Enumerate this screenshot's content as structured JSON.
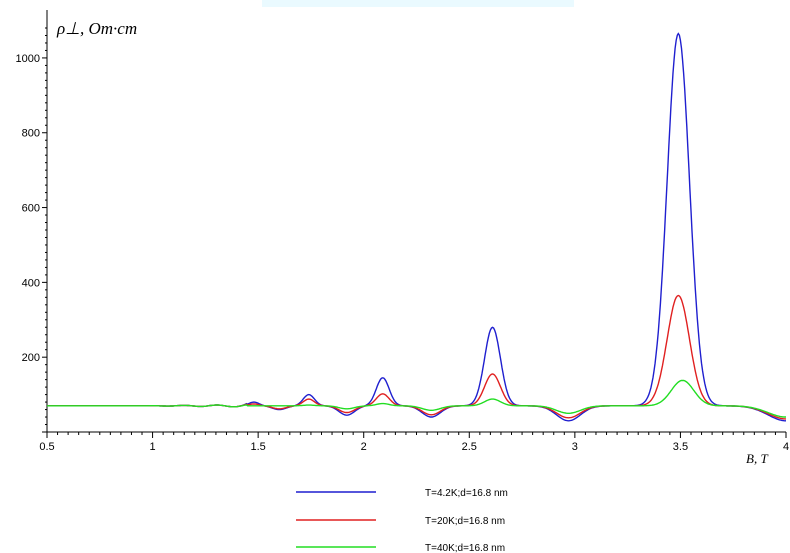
{
  "chart_data": {
    "type": "line",
    "ylabel": "ρ⊥, Om·cm",
    "xlabel": "B, T",
    "xlim": [
      0.5,
      4
    ],
    "ylim": [
      0,
      1080
    ],
    "x_ticks": [
      0.5,
      1,
      1.5,
      2,
      2.5,
      3,
      3.5,
      4
    ],
    "x_tick_labels": [
      "0.5",
      "1",
      "1.5",
      "2",
      "2.5",
      "3",
      "3.5",
      "4"
    ],
    "y_ticks": [
      200,
      400,
      600,
      800,
      1000
    ],
    "y_tick_labels": [
      "200",
      "400",
      "600",
      "800",
      "1000"
    ],
    "grid": false,
    "legend_position": "bottom-center",
    "series": [
      {
        "name": "T=4.2K;d=16.8 nm",
        "color": "#1f1fcf",
        "baseline": 70,
        "peaks": [
          {
            "x": 1.48,
            "height": 80
          },
          {
            "x": 1.74,
            "height": 100
          },
          {
            "x": 2.09,
            "height": 145
          },
          {
            "x": 2.61,
            "height": 280
          },
          {
            "x": 3.49,
            "height": 1065
          }
        ],
        "valleys": [
          {
            "x": 1.6,
            "depth": 60
          },
          {
            "x": 1.92,
            "depth": 45
          },
          {
            "x": 2.32,
            "depth": 40
          },
          {
            "x": 2.97,
            "depth": 30
          },
          {
            "x": 4.0,
            "depth": 30
          }
        ]
      },
      {
        "name": "T=20K;d=16.8 nm",
        "color": "#e02020",
        "baseline": 70,
        "peaks": [
          {
            "x": 1.48,
            "height": 75
          },
          {
            "x": 1.74,
            "height": 88
          },
          {
            "x": 2.09,
            "height": 102
          },
          {
            "x": 2.61,
            "height": 155
          },
          {
            "x": 3.49,
            "height": 365
          }
        ],
        "valleys": [
          {
            "x": 1.6,
            "depth": 62
          },
          {
            "x": 1.92,
            "depth": 52
          },
          {
            "x": 2.32,
            "depth": 46
          },
          {
            "x": 2.97,
            "depth": 38
          },
          {
            "x": 4.0,
            "depth": 35
          }
        ]
      },
      {
        "name": "T=40K;d=16.8 nm",
        "color": "#22dd22",
        "baseline": 70,
        "peaks": [
          {
            "x": 1.74,
            "height": 72
          },
          {
            "x": 2.09,
            "height": 76
          },
          {
            "x": 2.61,
            "height": 88
          },
          {
            "x": 3.51,
            "height": 138
          }
        ],
        "valleys": [
          {
            "x": 1.92,
            "depth": 62
          },
          {
            "x": 2.32,
            "depth": 58
          },
          {
            "x": 2.97,
            "depth": 50
          },
          {
            "x": 4.0,
            "depth": 40
          }
        ]
      }
    ]
  }
}
